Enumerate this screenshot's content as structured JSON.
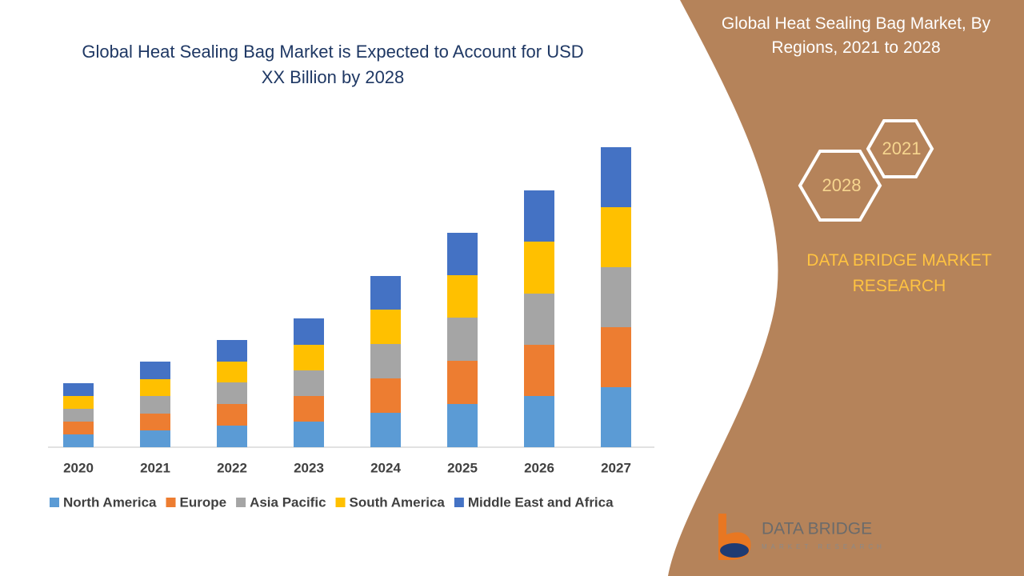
{
  "chart_data": {
    "type": "stacked_bar",
    "title": "Global Heat Sealing Bag Market is Expected to Account for USD XX Billion by 2028",
    "categories": [
      "2020",
      "2021",
      "2022",
      "2023",
      "2024",
      "2025",
      "2026",
      "2027"
    ],
    "series": [
      {
        "name": "North America",
        "color": "#5b9bd5",
        "values": [
          1.6,
          2.1,
          2.7,
          3.2,
          4.3,
          5.4,
          6.4,
          7.5
        ]
      },
      {
        "name": "Europe",
        "color": "#ed7d31",
        "values": [
          1.6,
          2.1,
          2.7,
          3.2,
          4.3,
          5.4,
          6.4,
          7.5
        ]
      },
      {
        "name": "Asia Pacific",
        "color": "#a5a5a5",
        "values": [
          1.6,
          2.2,
          2.7,
          3.2,
          4.3,
          5.4,
          6.4,
          7.5
        ]
      },
      {
        "name": "South America",
        "color": "#ffc000",
        "values": [
          1.6,
          2.1,
          2.6,
          3.2,
          4.3,
          5.3,
          6.5,
          7.5
        ]
      },
      {
        "name": "Middle East and Africa",
        "color": "#4472c4",
        "values": [
          1.6,
          2.2,
          2.7,
          3.3,
          4.2,
          5.3,
          6.4,
          7.5
        ]
      }
    ],
    "legend": "bottom"
  },
  "panel": {
    "title": "Global Heat Sealing Bag Market, By Regions, 2021 to 2028",
    "badges": [
      "2021",
      "2028"
    ],
    "brand": "DATA BRIDGE MARKET RESEARCH"
  },
  "logo": {
    "name": "DATA BRIDGE",
    "tagline": "MARKET RESEARCH"
  }
}
